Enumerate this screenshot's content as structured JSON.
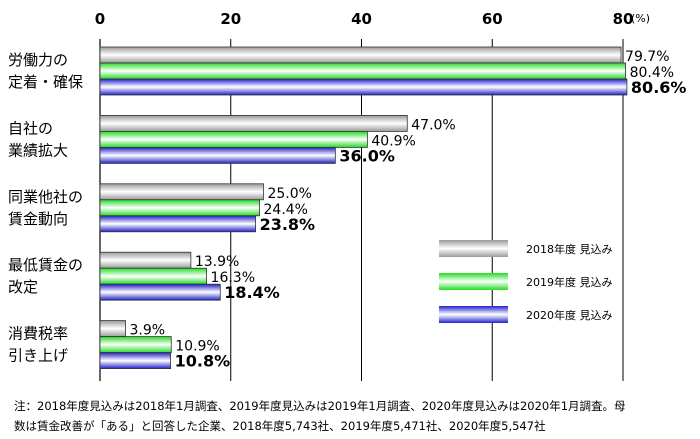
{
  "chart_data": {
    "type": "bar",
    "orientation": "horizontal",
    "unit": "(%)",
    "xlim": [
      0,
      80
    ],
    "ticks": [
      "0",
      "20",
      "40",
      "60",
      "80"
    ],
    "categories": [
      [
        "労働力の",
        "定着・確保"
      ],
      [
        "自社の",
        "業績拡大"
      ],
      [
        "同業他社の",
        "賃金動向"
      ],
      [
        "最低賃金の",
        "改定"
      ],
      [
        "消費税率",
        "引き上げ"
      ]
    ],
    "series": [
      {
        "name": "2018年度  見込み",
        "color": "#c8c8c8",
        "values": [
          79.7,
          47.0,
          25.0,
          13.9,
          3.9
        ],
        "labels": [
          "79.7%",
          "47.0%",
          "25.0%",
          "13.9%",
          "3.9%"
        ]
      },
      {
        "name": "2019年度  見込み",
        "color": "#33ee33",
        "values": [
          80.4,
          40.9,
          24.4,
          16.3,
          10.9
        ],
        "labels": [
          "80.4%",
          "40.9%",
          "24.4%",
          "16.3%",
          "10.9%"
        ]
      },
      {
        "name": "2020年度  見込み",
        "color": "#3333dd",
        "values": [
          80.6,
          36.0,
          23.8,
          18.4,
          10.8
        ],
        "labels": [
          "80.6%",
          "36.0%",
          "23.8%",
          "18.4%",
          "10.8%"
        ]
      }
    ],
    "grid": true,
    "legend": "right"
  },
  "footnote": {
    "line1": "注：2018年度見込みは2018年1月調査、2019年度見込みは2019年1月調査、2020年度見込みは2020年1月調査。母",
    "line2": "数は賃金改善が「ある」と回答した企業、2018年度5,743社、2019年度5,471社、2020年度5,547社"
  }
}
